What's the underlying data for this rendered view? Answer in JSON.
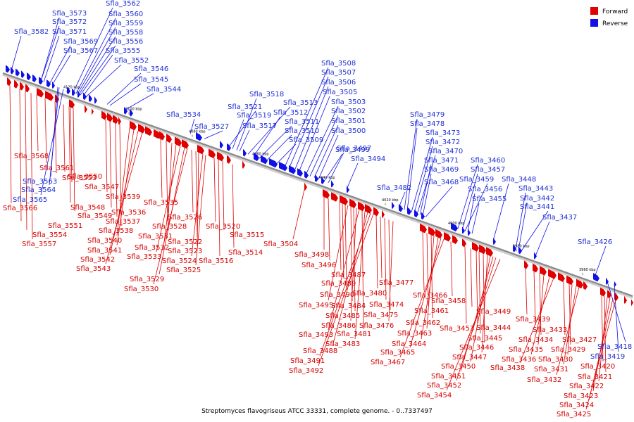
{
  "title": "Streptomyces flavogriseus ATCC 33331, complete genome. - 0..7337497",
  "legend": [
    {
      "label": "Forward",
      "color": "#e00000"
    },
    {
      "label": "Reverse",
      "color": "#1010e8"
    }
  ],
  "colors": {
    "forward": "#e00000",
    "reverse": "#1010e8",
    "backbone": "#8c8c8c"
  },
  "ticks": [
    "4120 kbp",
    "4100 kbp",
    "4080 kbp",
    "4060 kbp",
    "4040 kbp",
    "4020 kbp",
    "4000 kbp",
    "3980 kbp",
    "3960 kbp"
  ],
  "genes_reverse": [
    "Sfla_3582",
    "Sfla_3573",
    "Sfla_3572",
    "Sfla_3571",
    "Sfla_3569",
    "Sfla_3567",
    "Sfla_3562",
    "Sfla_3560",
    "Sfla_3559",
    "Sfla_3558",
    "Sfla_3556",
    "Sfla_3555",
    "Sfla_3552",
    "Sfla_3546",
    "Sfla_3545",
    "Sfla_3544",
    "Sfla_3534",
    "Sfla_3527",
    "Sfla_3521",
    "Sfla_3519",
    "Sfla_3518",
    "Sfla_3517",
    "Sfla_3513",
    "Sfla_3512",
    "Sfla_3511",
    "Sfla_3510",
    "Sfla_3509",
    "Sfla_3508",
    "Sfla_3507",
    "Sfla_3506",
    "Sfla_3505",
    "Sfla_3503",
    "Sfla_3502",
    "Sfla_3501",
    "Sfla_3500",
    "Sfla_3499",
    "Sfla_3497",
    "Sfla_3494",
    "Sfla_3482",
    "Sfla_3479",
    "Sfla_3478",
    "Sfla_3473",
    "Sfla_3472",
    "Sfla_3470",
    "Sfla_3471",
    "Sfla_3469",
    "Sfla_3468",
    "Sfla_3460",
    "Sfla_3457",
    "Sfla_3459",
    "Sfla_3456",
    "Sfla_3455",
    "Sfla_3448",
    "Sfla_3443",
    "Sfla_3442",
    "Sfla_3441",
    "Sfla_3437",
    "Sfla_3426",
    "Sfla_3418",
    "Sfla_3419",
    "Sfla_3563",
    "Sfla_3564",
    "Sfla_3565"
  ],
  "genes_forward": [
    "Sfla_3568",
    "Sfla_3561",
    "Sfla_3553",
    "Sfla_3550",
    "Sfla_3547",
    "Sfla_3566",
    "Sfla_3548",
    "Sfla_3549",
    "Sfla_3539",
    "Sfla_3536",
    "Sfla_3551",
    "Sfla_3537",
    "Sfla_3554",
    "Sfla_3538",
    "Sfla_3557",
    "Sfla_3540",
    "Sfla_3541",
    "Sfla_3542",
    "Sfla_3543",
    "Sfla_3535",
    "Sfla_3528",
    "Sfla_3531",
    "Sfla_3532",
    "Sfla_3533",
    "Sfla_3529",
    "Sfla_3530",
    "Sfla_3526",
    "Sfla_3522",
    "Sfla_3523",
    "Sfla_3524",
    "Sfla_3525",
    "Sfla_3520",
    "Sfla_3515",
    "Sfla_3516",
    "Sfla_3514",
    "Sfla_3504",
    "Sfla_3498",
    "Sfla_3496",
    "Sfla_3487",
    "Sfla_3489",
    "Sfla_3490",
    "Sfla_3495",
    "Sfla_3484",
    "Sfla_3485",
    "Sfla_3486",
    "Sfla_3493",
    "Sfla_3481",
    "Sfla_3483",
    "Sfla_3488",
    "Sfla_3491",
    "Sfla_3492",
    "Sfla_3480",
    "Sfla_3477",
    "Sfla_3474",
    "Sfla_3475",
    "Sfla_3476",
    "Sfla_3466",
    "Sfla_3461",
    "Sfla_3462",
    "Sfla_3463",
    "Sfla_3464",
    "Sfla_3465",
    "Sfla_3467",
    "Sfla_3458",
    "Sfla_3453",
    "Sfla_3449",
    "Sfla_3444",
    "Sfla_3445",
    "Sfla_3446",
    "Sfla_3447",
    "Sfla_3450",
    "Sfla_3451",
    "Sfla_3452",
    "Sfla_3454",
    "Sfla_3439",
    "Sfla_3433",
    "Sfla_3434",
    "Sfla_3435",
    "Sfla_3436",
    "Sfla_3438",
    "Sfla_3427",
    "Sfla_3429",
    "Sfla_3430",
    "Sfla_3431",
    "Sfla_3432",
    "Sfla_3420",
    "Sfla_3421",
    "Sfla_3422",
    "Sfla_3423",
    "Sfla_3424",
    "Sfla_3425"
  ]
}
